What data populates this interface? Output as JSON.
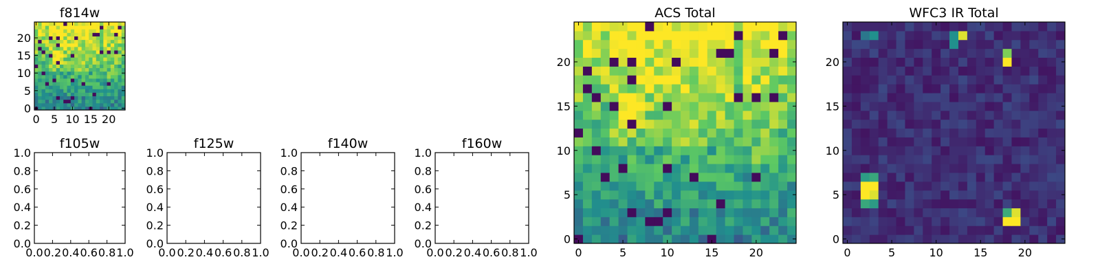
{
  "chart_data": [
    {
      "type": "heatmap",
      "title": "f814w",
      "source": "acs",
      "xticks": [
        "0",
        "5",
        "10",
        "15",
        "20"
      ],
      "yticks": [
        "0",
        "5",
        "10",
        "15",
        "20"
      ],
      "xlim": [
        -0.5,
        24.5
      ],
      "ylim": [
        -0.5,
        24.5
      ],
      "grid": false,
      "colormap": [
        "#440154",
        "#3b528b",
        "#21908d",
        "#5dc963",
        "#fde725"
      ]
    },
    {
      "type": "heatmap",
      "title": "f105w",
      "empty": true,
      "xticks": [
        "0.0",
        "0.2",
        "0.4",
        "0.6",
        "0.8",
        "1.0"
      ],
      "yticks": [
        "0.0",
        "0.2",
        "0.4",
        "0.6",
        "0.8",
        "1.0"
      ],
      "xlim": [
        0,
        1
      ],
      "ylim": [
        0,
        1
      ],
      "grid": false
    },
    {
      "type": "heatmap",
      "title": "f125w",
      "empty": true,
      "xticks": [
        "0.0",
        "0.2",
        "0.4",
        "0.6",
        "0.8",
        "1.0"
      ],
      "yticks": [
        "0.0",
        "0.2",
        "0.4",
        "0.6",
        "0.8",
        "1.0"
      ],
      "xlim": [
        0,
        1
      ],
      "ylim": [
        0,
        1
      ],
      "grid": false
    },
    {
      "type": "heatmap",
      "title": "f140w",
      "empty": true,
      "xticks": [
        "0.0",
        "0.2",
        "0.4",
        "0.6",
        "0.8",
        "1.0"
      ],
      "yticks": [
        "0.0",
        "0.2",
        "0.4",
        "0.6",
        "0.8",
        "1.0"
      ],
      "xlim": [
        0,
        1
      ],
      "ylim": [
        0,
        1
      ],
      "grid": false
    },
    {
      "type": "heatmap",
      "title": "f160w",
      "empty": true,
      "xticks": [
        "0.0",
        "0.2",
        "0.4",
        "0.6",
        "0.8",
        "1.0"
      ],
      "yticks": [
        "0.0",
        "0.2",
        "0.4",
        "0.6",
        "0.8",
        "1.0"
      ],
      "xlim": [
        0,
        1
      ],
      "ylim": [
        0,
        1
      ],
      "grid": false
    },
    {
      "type": "heatmap",
      "title": "ACS Total",
      "source": "acs",
      "xticks": [
        "0",
        "5",
        "10",
        "15",
        "20"
      ],
      "yticks": [
        "0",
        "5",
        "10",
        "15",
        "20"
      ],
      "xlim": [
        -0.5,
        24.5
      ],
      "ylim": [
        -0.5,
        24.5
      ],
      "grid": false,
      "colormap": [
        "#440154",
        "#3b528b",
        "#21908d",
        "#5dc963",
        "#fde725"
      ]
    },
    {
      "type": "heatmap",
      "title": "WFC3 IR Total",
      "source": "ir",
      "xticks": [
        "0",
        "5",
        "10",
        "15",
        "20"
      ],
      "yticks": [
        "0",
        "5",
        "10",
        "15",
        "20"
      ],
      "xlim": [
        -0.5,
        24.5
      ],
      "ylim": [
        -0.5,
        24.5
      ],
      "grid": false,
      "colormap": [
        "#440154",
        "#3b528b",
        "#21908d",
        "#5dc963",
        "#fde725"
      ]
    }
  ]
}
